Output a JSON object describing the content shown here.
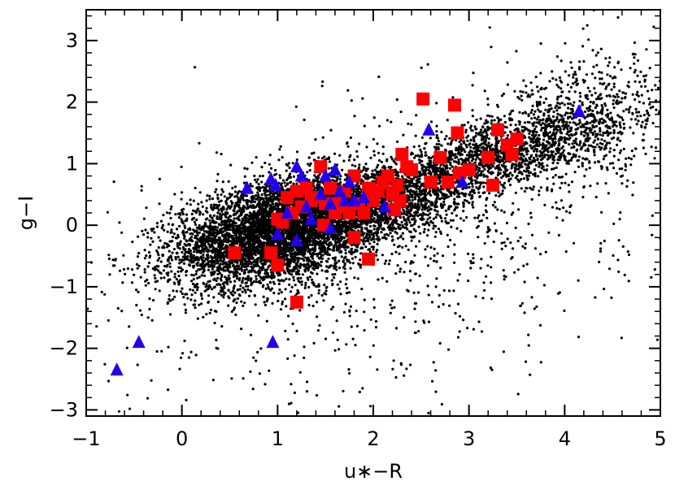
{
  "chart_data": {
    "type": "scatter",
    "title": "",
    "xlabel": "u∗−R",
    "ylabel": "g−I",
    "xlim": [
      -1,
      5
    ],
    "ylim": [
      -3.1,
      3.5
    ],
    "x_ticks": [
      -1,
      0,
      1,
      2,
      3,
      4,
      5
    ],
    "x_tick_labels": [
      "−1",
      "0",
      "1",
      "2",
      "3",
      "4",
      "5"
    ],
    "y_ticks": [
      -3,
      -2,
      -1,
      0,
      1,
      2,
      3
    ],
    "y_tick_labels": [
      "−3",
      "−2",
      "−1",
      "0",
      "1",
      "2",
      "3"
    ],
    "grid": false,
    "legend": "none",
    "series": [
      {
        "marker": "dot",
        "color": "#000000",
        "note_count_approx": 9000,
        "generated_distribution": [
          {
            "n": 5200,
            "cx": 1.0,
            "cy": -0.1,
            "sx": 0.55,
            "sy": 0.45,
            "rho": 0.4
          },
          {
            "n": 1800,
            "cx": 2.0,
            "cy": 0.35,
            "sx": 0.55,
            "sy": 0.35,
            "rho": 0.5
          },
          {
            "n": 1300,
            "cx": 3.3,
            "cy": 1.15,
            "sx": 0.55,
            "sy": 0.35,
            "rho": 0.6
          },
          {
            "n": 700,
            "cx": 4.2,
            "cy": 1.7,
            "sx": 0.45,
            "sy": 0.5,
            "rho": 0.3
          },
          {
            "n": 900,
            "cx": 2.3,
            "cy": -0.3,
            "sx": 1.4,
            "sy": 1.3,
            "rho": 0.35
          }
        ]
      },
      {
        "marker": "square",
        "color": "#ff0000",
        "x": [
          0.55,
          0.93,
          1.0,
          1.05,
          1.1,
          1.15,
          1.2,
          1.25,
          1.3,
          1.35,
          1.4,
          1.45,
          1.5,
          1.55,
          1.6,
          1.65,
          1.7,
          1.75,
          1.8,
          1.85,
          1.9,
          1.95,
          2.0,
          2.05,
          2.1,
          2.15,
          2.2,
          2.25,
          2.3,
          2.35,
          2.4,
          2.52,
          2.6,
          2.7,
          2.78,
          2.85,
          2.88,
          2.9,
          3.0,
          3.2,
          3.25,
          3.3,
          3.4,
          3.45,
          3.5,
          1.2,
          1.95,
          1.8,
          1.3,
          1.6,
          1.0,
          1.48,
          2.28,
          2.22
        ],
        "y": [
          -0.45,
          -0.45,
          -0.65,
          0.05,
          0.45,
          0.2,
          0.55,
          0.3,
          0.6,
          0.4,
          0.45,
          0.95,
          0.35,
          0.6,
          0.2,
          0.3,
          0.55,
          0.2,
          0.8,
          0.35,
          0.2,
          0.6,
          0.4,
          0.55,
          0.7,
          0.8,
          0.5,
          0.65,
          1.15,
          0.95,
          0.9,
          2.05,
          0.7,
          1.1,
          0.7,
          1.95,
          1.5,
          0.85,
          0.9,
          1.1,
          0.65,
          1.55,
          1.3,
          1.15,
          1.4,
          -1.25,
          -0.55,
          -0.2,
          0.6,
          0.35,
          0.1,
          0.0,
          0.4,
          0.25
        ]
      },
      {
        "marker": "triangle",
        "color": "#2200ee",
        "x": [
          -0.68,
          -0.45,
          0.68,
          0.93,
          0.95,
          1.0,
          1.1,
          1.2,
          1.25,
          1.3,
          1.35,
          1.45,
          1.5,
          1.55,
          1.6,
          1.65,
          1.7,
          1.75,
          1.8,
          1.9,
          2.12,
          2.58,
          2.93,
          4.15,
          0.98,
          1.2,
          1.55
        ],
        "y": [
          -2.35,
          -1.9,
          0.6,
          0.75,
          -1.9,
          -0.15,
          0.2,
          0.95,
          0.8,
          0.3,
          0.1,
          0.5,
          0.8,
          0.35,
          0.9,
          0.55,
          0.4,
          0.7,
          0.4,
          0.45,
          0.3,
          1.55,
          0.7,
          1.85,
          0.65,
          -0.25,
          -0.05
        ]
      }
    ]
  }
}
